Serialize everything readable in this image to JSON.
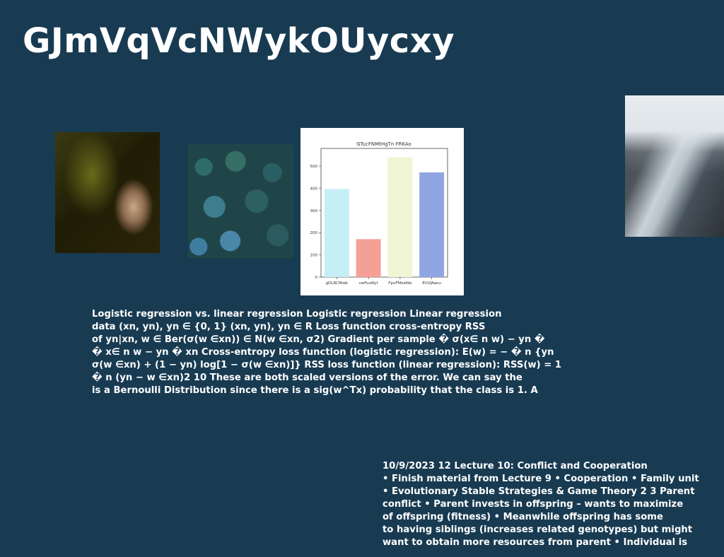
{
  "title": "GJmVqVcNWykOUycxy",
  "images": {
    "face": "face-photo",
    "forest": "forest-aerial-photo",
    "mountain": "snowy-mountain-photo"
  },
  "chart_data": {
    "type": "bar",
    "title": "GTucFNMtHgTn FRKAo",
    "categories": [
      "gDLRCNIwk",
      "vwFuziKyt",
      "FpvFMoeNw",
      "EUVJAaou"
    ],
    "values": [
      397,
      171,
      541,
      472
    ],
    "colors": [
      "#c6eef5",
      "#f5a097",
      "#f1f5d6",
      "#90a6e3"
    ],
    "ylim": [
      0,
      580
    ],
    "yticks": [
      "0",
      "100",
      "200",
      "300",
      "400",
      "500"
    ],
    "xlabel": "",
    "ylabel": "",
    "grid": false
  },
  "text_block_a": {
    "lines": [
      "Logistic regression vs. linear regression Logistic regression Linear regression",
      "data (xn, yn), yn ∈ {0, 1} (xn, yn), yn ∈ R Loss function cross-entropy RSS",
      "of yn|xn, w ∈ Ber(σ(w ∈xn)) ∈ N(w ∈xn, σ2) Gradient per sample � σ(x∈ n w) − yn �",
      "� x∈ n w − yn � xn Cross-entropy loss function (logistic regression): E(w) = − � n {yn",
      "σ(w ∈xn) + (1 − yn) log[1 − σ(w ∈xn)]} RSS loss function (linear regression): RSS(w) = 1",
      "� n (yn − w ∈xn)2 10 These are both scaled versions of the error. We can say the",
      "is a Bernoulli Distribution since there is a sig(w^Tx) probability that the class is 1. A"
    ]
  },
  "text_block_b": {
    "lines": [
      "10/9/2023 12 Lecture 10: Conflict and Cooperation",
      "• Finish material from Lecture 9 • Cooperation • Family unit",
      "• Evolutionary Stable Strategies & Game Theory 2 3 Parent",
      "conflict • Parent invests in offspring – wants to maximize",
      "of offspring (fitness) • Meanwhile offspring has some",
      "to having siblings (increases related genotypes) but might",
      "want to obtain more resources from parent • Individual is"
    ]
  }
}
